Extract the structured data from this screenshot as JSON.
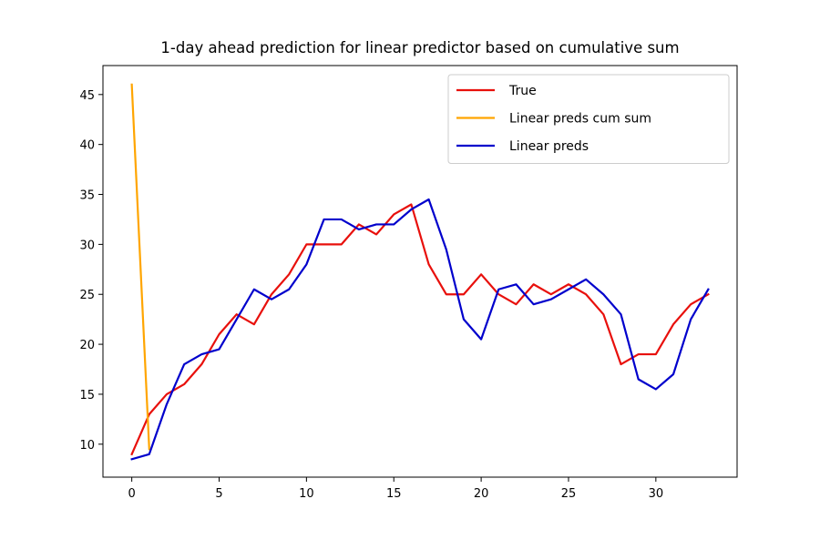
{
  "chart_data": {
    "type": "line",
    "title": "1-day ahead prediction for linear predictor based on cumulative sum",
    "xlabel": "",
    "ylabel": "",
    "xlim": [
      -1.65,
      34.65
    ],
    "ylim": [
      6.7,
      47.9
    ],
    "xticks": [
      0,
      5,
      10,
      15,
      20,
      25,
      30
    ],
    "yticks": [
      10,
      15,
      20,
      25,
      30,
      35,
      40,
      45
    ],
    "grid": false,
    "legend_position": "upper right",
    "series": [
      {
        "name": "True",
        "color": "#e8100c",
        "x": [
          0,
          1,
          2,
          3,
          4,
          5,
          6,
          7,
          8,
          9,
          10,
          11,
          12,
          13,
          14,
          15,
          16,
          17,
          18,
          19,
          20,
          21,
          22,
          23,
          24,
          25,
          26,
          27,
          28,
          29,
          30,
          31,
          32,
          33
        ],
        "values": [
          9,
          13,
          15,
          16,
          18,
          21,
          23,
          22,
          25,
          27,
          30,
          30,
          30,
          32,
          31,
          33,
          34,
          28,
          25,
          25,
          27,
          25,
          24,
          26,
          25,
          26,
          25,
          23,
          18,
          19,
          19,
          22,
          24,
          25
        ]
      },
      {
        "name": "Linear preds cum sum",
        "color": "#ffa500",
        "x": [
          0,
          1
        ],
        "values": [
          46,
          9.5
        ]
      },
      {
        "name": "Linear preds",
        "color": "#0000cc",
        "x": [
          0,
          1,
          2,
          3,
          4,
          5,
          6,
          7,
          8,
          9,
          10,
          11,
          12,
          13,
          14,
          15,
          16,
          17,
          18,
          19,
          20,
          21,
          22,
          23,
          24,
          25,
          26,
          27,
          28,
          29,
          30,
          31,
          32,
          33
        ],
        "values": [
          8.5,
          9,
          14,
          18,
          19,
          19.5,
          22.5,
          25.5,
          24.5,
          25.5,
          28,
          32.5,
          32.5,
          31.5,
          32,
          32,
          33.5,
          34.5,
          29.5,
          22.5,
          20.5,
          25.5,
          26,
          24,
          24.5,
          25.5,
          26.5,
          25,
          23,
          16.5,
          15.5,
          17,
          22.5,
          25.5
        ]
      }
    ]
  }
}
